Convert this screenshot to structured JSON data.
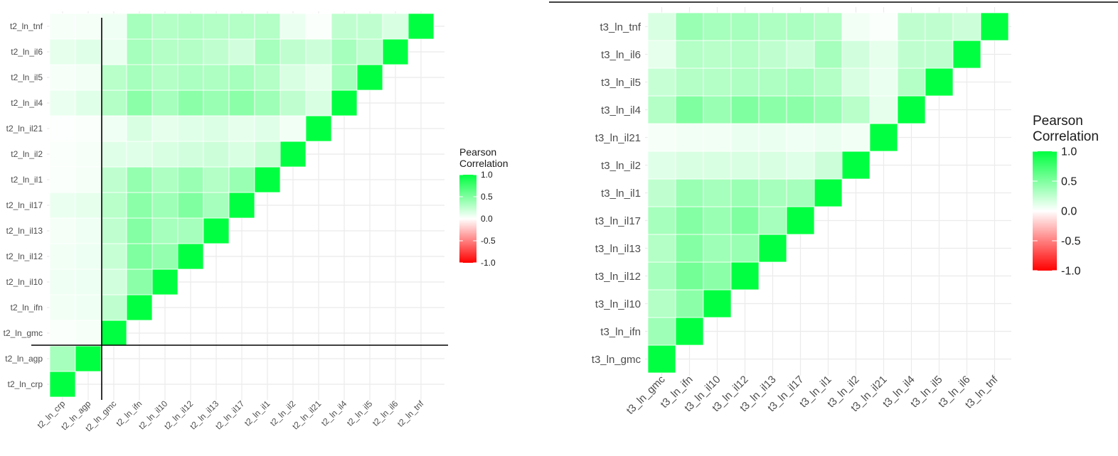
{
  "chart_data": [
    {
      "type": "heatmap",
      "title": "",
      "xlabel": "",
      "ylabel": "",
      "variables": [
        "t2_ln_crp",
        "t2_ln_agp",
        "t2_ln_gmc",
        "t2_ln_ifn",
        "t2_ln_il10",
        "t2_ln_il12",
        "t2_ln_il13",
        "t2_ln_il17",
        "t2_ln_il1",
        "t2_ln_il2",
        "t2_ln_il21",
        "t2_ln_il4",
        "t2_ln_il5",
        "t2_ln_il6",
        "t2_ln_tnf"
      ],
      "triangle": "lower",
      "values": [
        [
          1.0
        ],
        [
          0.35,
          1.0
        ],
        [
          0.02,
          0.03,
          1.0
        ],
        [
          0.05,
          0.06,
          0.25,
          1.0
        ],
        [
          0.06,
          0.07,
          0.18,
          0.45,
          1.0
        ],
        [
          0.05,
          0.07,
          0.22,
          0.5,
          0.42,
          1.0
        ],
        [
          0.04,
          0.06,
          0.25,
          0.48,
          0.35,
          0.35,
          1.0
        ],
        [
          0.08,
          0.1,
          0.28,
          0.45,
          0.38,
          0.5,
          0.35,
          1.0
        ],
        [
          0.02,
          0.04,
          0.25,
          0.42,
          0.32,
          0.4,
          0.3,
          0.4,
          1.0
        ],
        [
          0.02,
          0.03,
          0.12,
          0.12,
          0.15,
          0.18,
          0.2,
          0.15,
          0.22,
          1.0
        ],
        [
          0.01,
          0.02,
          0.06,
          0.15,
          0.1,
          0.12,
          0.14,
          0.1,
          0.12,
          0.05,
          1.0
        ],
        [
          0.08,
          0.12,
          0.3,
          0.45,
          0.35,
          0.45,
          0.4,
          0.45,
          0.38,
          0.25,
          0.15,
          1.0
        ],
        [
          0.03,
          0.05,
          0.28,
          0.35,
          0.3,
          0.33,
          0.32,
          0.35,
          0.3,
          0.15,
          0.1,
          0.35,
          1.0
        ],
        [
          0.1,
          0.12,
          0.08,
          0.35,
          0.3,
          0.3,
          0.25,
          0.18,
          0.35,
          0.25,
          0.2,
          0.35,
          0.25,
          1.0
        ],
        [
          0.03,
          0.04,
          0.06,
          0.35,
          0.3,
          0.32,
          0.3,
          0.3,
          0.3,
          0.08,
          0.02,
          0.25,
          0.25,
          0.15,
          1.0
        ]
      ],
      "color_scale": {
        "low": "#ff0000",
        "mid": "#ffffff",
        "high": "#00ff40",
        "limits": [
          -1.0,
          1.0
        ]
      },
      "legend": {
        "title": [
          "Pearson",
          "Correlation"
        ],
        "labels": [
          "1.0",
          "0.5",
          "0.0",
          "-0.5",
          "-1.0"
        ],
        "position": "right"
      },
      "reference_lines": {
        "vertical_between": [
          "t2_ln_agp",
          "t2_ln_gmc"
        ],
        "horizontal_between": [
          "t2_ln_agp",
          "t2_ln_gmc"
        ],
        "color": "#000000"
      },
      "grid": true
    },
    {
      "type": "heatmap",
      "title": "",
      "xlabel": "",
      "ylabel": "",
      "variables": [
        "t3_ln_gmc",
        "t3_ln_ifn",
        "t3_ln_il10",
        "t3_ln_il12",
        "t3_ln_il13",
        "t3_ln_il17",
        "t3_ln_il1",
        "t3_ln_il2",
        "t3_ln_il21",
        "t3_ln_il4",
        "t3_ln_il5",
        "t3_ln_il6",
        "t3_ln_tnf"
      ],
      "triangle": "lower",
      "values": [
        [
          1.0
        ],
        [
          0.38,
          1.0
        ],
        [
          0.3,
          0.45,
          1.0
        ],
        [
          0.35,
          0.55,
          0.45,
          1.0
        ],
        [
          0.3,
          0.48,
          0.38,
          0.4,
          1.0
        ],
        [
          0.35,
          0.48,
          0.4,
          0.5,
          0.35,
          1.0
        ],
        [
          0.25,
          0.4,
          0.35,
          0.4,
          0.35,
          0.35,
          1.0
        ],
        [
          0.12,
          0.15,
          0.15,
          0.15,
          0.15,
          0.12,
          0.2,
          1.0
        ],
        [
          0.03,
          0.05,
          0.05,
          0.08,
          0.08,
          0.06,
          0.08,
          0.05,
          1.0
        ],
        [
          0.3,
          0.5,
          0.4,
          0.5,
          0.45,
          0.45,
          0.4,
          0.28,
          0.1,
          1.0
        ],
        [
          0.22,
          0.3,
          0.3,
          0.32,
          0.32,
          0.35,
          0.3,
          0.15,
          0.08,
          0.3,
          1.0
        ],
        [
          0.1,
          0.3,
          0.28,
          0.3,
          0.25,
          0.2,
          0.35,
          0.18,
          0.1,
          0.25,
          0.25,
          1.0
        ],
        [
          0.15,
          0.4,
          0.35,
          0.35,
          0.32,
          0.33,
          0.3,
          0.05,
          0.02,
          0.25,
          0.25,
          0.2,
          1.0
        ]
      ],
      "color_scale": {
        "low": "#ff0000",
        "mid": "#ffffff",
        "high": "#00ff40",
        "limits": [
          -1.0,
          1.0
        ]
      },
      "legend": {
        "title": [
          "Pearson",
          "Correlation"
        ],
        "labels": [
          "1.0",
          "0.5",
          "0.0",
          "-0.5",
          "-1.0"
        ],
        "position": "right"
      },
      "grid": true
    }
  ]
}
